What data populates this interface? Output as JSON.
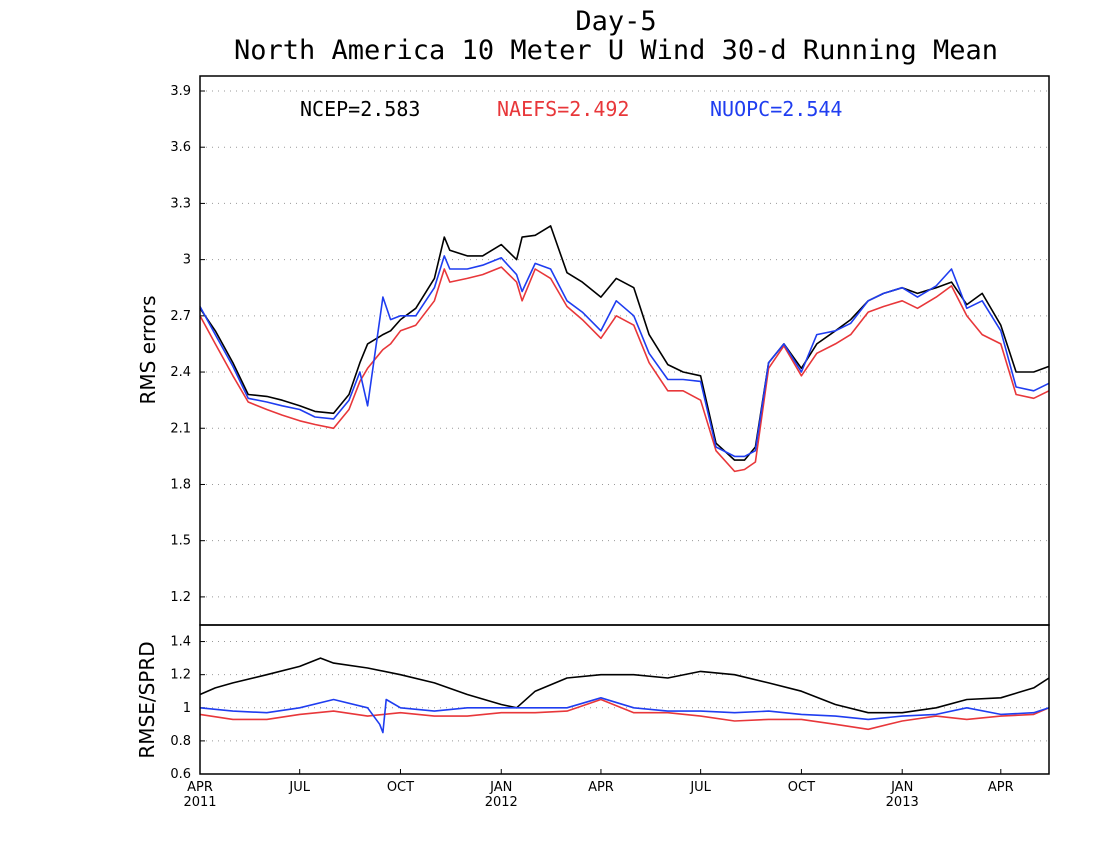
{
  "chart_data": [
    {
      "type": "line",
      "title": "Day-5",
      "subtitle": "North America 10 Meter U Wind 30-d Running Mean",
      "ylabel": "RMS errors",
      "ylim": [
        1.05,
        3.98
      ],
      "yticks": [
        1.2,
        1.5,
        1.8,
        2.1,
        2.4,
        2.7,
        3.0,
        3.3,
        3.6,
        3.9
      ],
      "ytick_labels": [
        "1.2",
        "1.5",
        "1.8",
        "2.1",
        "2.4",
        "2.7",
        "3",
        "3.3",
        "3.6",
        "3.9"
      ],
      "grid": true,
      "legend_position": "top",
      "xlim": [
        "2011-04-01",
        "2013-05-15"
      ],
      "series": [
        {
          "name": "NCEP",
          "label": "NCEP=2.583",
          "color": "#000000",
          "x": [
            "2011-04-01",
            "2011-04-15",
            "2011-05-01",
            "2011-05-15",
            "2011-06-01",
            "2011-06-15",
            "2011-07-01",
            "2011-07-15",
            "2011-08-01",
            "2011-08-15",
            "2011-08-25",
            "2011-09-01",
            "2011-09-15",
            "2011-09-22",
            "2011-10-01",
            "2011-10-15",
            "2011-11-01",
            "2011-11-10",
            "2011-11-15",
            "2011-12-01",
            "2011-12-15",
            "2012-01-01",
            "2012-01-15",
            "2012-01-20",
            "2012-02-01",
            "2012-02-15",
            "2012-03-01",
            "2012-03-15",
            "2012-04-01",
            "2012-04-15",
            "2012-05-01",
            "2012-05-15",
            "2012-06-01",
            "2012-06-15",
            "2012-07-01",
            "2012-07-15",
            "2012-08-01",
            "2012-08-10",
            "2012-08-20",
            "2012-09-01",
            "2012-09-15",
            "2012-10-01",
            "2012-10-15",
            "2012-11-01",
            "2012-11-15",
            "2012-12-01",
            "2012-12-15",
            "2013-01-01",
            "2013-01-15",
            "2013-02-01",
            "2013-02-15",
            "2013-03-01",
            "2013-03-15",
            "2013-04-01",
            "2013-04-15",
            "2013-05-01",
            "2013-05-15"
          ],
          "values": [
            2.74,
            2.62,
            2.45,
            2.28,
            2.27,
            2.25,
            2.22,
            2.19,
            2.18,
            2.28,
            2.45,
            2.55,
            2.6,
            2.62,
            2.68,
            2.74,
            2.9,
            3.12,
            3.05,
            3.02,
            3.02,
            3.08,
            3.0,
            3.12,
            3.13,
            3.18,
            2.93,
            2.88,
            2.8,
            2.9,
            2.85,
            2.6,
            2.44,
            2.4,
            2.38,
            2.02,
            1.93,
            1.93,
            2.0,
            2.45,
            2.55,
            2.42,
            2.55,
            2.62,
            2.68,
            2.78,
            2.82,
            2.85,
            2.82,
            2.85,
            2.88,
            2.76,
            2.82,
            2.65,
            2.4,
            2.4,
            2.43
          ]
        },
        {
          "name": "NAEFS",
          "label": "NAEFS=2.492",
          "color": "#e8373a",
          "x": [
            "2011-04-01",
            "2011-04-15",
            "2011-05-01",
            "2011-05-15",
            "2011-06-01",
            "2011-06-15",
            "2011-07-01",
            "2011-07-15",
            "2011-08-01",
            "2011-08-15",
            "2011-08-25",
            "2011-09-01",
            "2011-09-15",
            "2011-09-22",
            "2011-10-01",
            "2011-10-15",
            "2011-11-01",
            "2011-11-10",
            "2011-11-15",
            "2011-12-01",
            "2011-12-15",
            "2012-01-01",
            "2012-01-15",
            "2012-01-20",
            "2012-02-01",
            "2012-02-15",
            "2012-03-01",
            "2012-03-15",
            "2012-04-01",
            "2012-04-15",
            "2012-05-01",
            "2012-05-15",
            "2012-06-01",
            "2012-06-15",
            "2012-07-01",
            "2012-07-15",
            "2012-08-01",
            "2012-08-10",
            "2012-08-20",
            "2012-09-01",
            "2012-09-15",
            "2012-10-01",
            "2012-10-15",
            "2012-11-01",
            "2012-11-15",
            "2012-12-01",
            "2012-12-15",
            "2013-01-01",
            "2013-01-15",
            "2013-02-01",
            "2013-02-15",
            "2013-03-01",
            "2013-03-15",
            "2013-04-01",
            "2013-04-15",
            "2013-05-01",
            "2013-05-15"
          ],
          "values": [
            2.7,
            2.55,
            2.38,
            2.24,
            2.2,
            2.17,
            2.14,
            2.12,
            2.1,
            2.2,
            2.35,
            2.42,
            2.52,
            2.55,
            2.62,
            2.65,
            2.78,
            2.95,
            2.88,
            2.9,
            2.92,
            2.96,
            2.88,
            2.78,
            2.95,
            2.9,
            2.75,
            2.68,
            2.58,
            2.7,
            2.65,
            2.45,
            2.3,
            2.3,
            2.25,
            1.98,
            1.87,
            1.88,
            1.92,
            2.42,
            2.54,
            2.38,
            2.5,
            2.55,
            2.6,
            2.72,
            2.75,
            2.78,
            2.74,
            2.8,
            2.86,
            2.7,
            2.6,
            2.55,
            2.28,
            2.26,
            2.3
          ]
        },
        {
          "name": "NUOPC",
          "label": "NUOPC=2.544",
          "color": "#1f3df0",
          "x": [
            "2011-04-01",
            "2011-04-15",
            "2011-05-01",
            "2011-05-15",
            "2011-06-01",
            "2011-06-15",
            "2011-07-01",
            "2011-07-15",
            "2011-08-01",
            "2011-08-15",
            "2011-08-25",
            "2011-09-01",
            "2011-09-15",
            "2011-09-22",
            "2011-10-01",
            "2011-10-15",
            "2011-11-01",
            "2011-11-10",
            "2011-11-15",
            "2011-12-01",
            "2011-12-15",
            "2012-01-01",
            "2012-01-15",
            "2012-01-20",
            "2012-02-01",
            "2012-02-15",
            "2012-03-01",
            "2012-03-15",
            "2012-04-01",
            "2012-04-15",
            "2012-05-01",
            "2012-05-15",
            "2012-06-01",
            "2012-06-15",
            "2012-07-01",
            "2012-07-15",
            "2012-08-01",
            "2012-08-10",
            "2012-08-20",
            "2012-09-01",
            "2012-09-15",
            "2012-10-01",
            "2012-10-15",
            "2012-11-01",
            "2012-11-15",
            "2012-12-01",
            "2012-12-15",
            "2013-01-01",
            "2013-01-15",
            "2013-02-01",
            "2013-02-15",
            "2013-03-01",
            "2013-03-15",
            "2013-04-01",
            "2013-04-15",
            "2013-05-01",
            "2013-05-15"
          ],
          "values": [
            2.75,
            2.6,
            2.43,
            2.26,
            2.24,
            2.22,
            2.2,
            2.16,
            2.15,
            2.25,
            2.4,
            2.22,
            2.8,
            2.68,
            2.7,
            2.7,
            2.85,
            3.02,
            2.95,
            2.95,
            2.97,
            3.01,
            2.92,
            2.83,
            2.98,
            2.95,
            2.78,
            2.72,
            2.62,
            2.78,
            2.7,
            2.5,
            2.36,
            2.36,
            2.35,
            2.0,
            1.95,
            1.95,
            1.98,
            2.45,
            2.55,
            2.4,
            2.6,
            2.62,
            2.66,
            2.78,
            2.82,
            2.85,
            2.8,
            2.86,
            2.95,
            2.74,
            2.78,
            2.62,
            2.32,
            2.3,
            2.34
          ]
        }
      ]
    },
    {
      "type": "line",
      "ylabel": "RMSE/SPRD",
      "ylim": [
        0.6,
        1.5
      ],
      "yticks": [
        0.6,
        0.8,
        1.0,
        1.2,
        1.4
      ],
      "ytick_labels": [
        "0.6",
        "0.8",
        "1",
        "1.2",
        "1.4"
      ],
      "grid": true,
      "xlim": [
        "2011-04-01",
        "2013-05-15"
      ],
      "xticks": [
        "2011-04-01",
        "2011-07-01",
        "2011-10-01",
        "2012-01-01",
        "2012-04-01",
        "2012-07-01",
        "2012-10-01",
        "2013-01-01",
        "2013-04-01"
      ],
      "xtick_labels": [
        {
          "month": "APR",
          "year": "2011"
        },
        {
          "month": "JUL",
          "year": ""
        },
        {
          "month": "OCT",
          "year": ""
        },
        {
          "month": "JAN",
          "year": "2012"
        },
        {
          "month": "APR",
          "year": ""
        },
        {
          "month": "JUL",
          "year": ""
        },
        {
          "month": "OCT",
          "year": ""
        },
        {
          "month": "JAN",
          "year": "2013"
        },
        {
          "month": "APR",
          "year": ""
        }
      ],
      "series": [
        {
          "name": "NCEP",
          "color": "#000000",
          "x": [
            "2011-04-01",
            "2011-04-15",
            "2011-05-01",
            "2011-06-01",
            "2011-07-01",
            "2011-07-20",
            "2011-08-01",
            "2011-09-01",
            "2011-10-01",
            "2011-11-01",
            "2011-12-01",
            "2012-01-01",
            "2012-01-15",
            "2012-02-01",
            "2012-03-01",
            "2012-04-01",
            "2012-05-01",
            "2012-06-01",
            "2012-07-01",
            "2012-08-01",
            "2012-09-01",
            "2012-10-01",
            "2012-11-01",
            "2012-12-01",
            "2013-01-01",
            "2013-02-01",
            "2013-03-01",
            "2013-04-01",
            "2013-05-01",
            "2013-05-15"
          ],
          "values": [
            1.08,
            1.12,
            1.15,
            1.2,
            1.25,
            1.3,
            1.27,
            1.24,
            1.2,
            1.15,
            1.08,
            1.02,
            1.0,
            1.1,
            1.18,
            1.2,
            1.2,
            1.18,
            1.22,
            1.2,
            1.15,
            1.1,
            1.02,
            0.97,
            0.97,
            1.0,
            1.05,
            1.06,
            1.12,
            1.18
          ]
        },
        {
          "name": "NAEFS",
          "color": "#e8373a",
          "x": [
            "2011-04-01",
            "2011-05-01",
            "2011-06-01",
            "2011-07-01",
            "2011-08-01",
            "2011-09-01",
            "2011-10-01",
            "2011-11-01",
            "2011-12-01",
            "2012-01-01",
            "2012-02-01",
            "2012-03-01",
            "2012-04-01",
            "2012-05-01",
            "2012-06-01",
            "2012-07-01",
            "2012-08-01",
            "2012-09-01",
            "2012-10-01",
            "2012-11-01",
            "2012-12-01",
            "2013-01-01",
            "2013-02-01",
            "2013-03-01",
            "2013-04-01",
            "2013-05-01",
            "2013-05-15"
          ],
          "values": [
            0.96,
            0.93,
            0.93,
            0.96,
            0.98,
            0.95,
            0.97,
            0.95,
            0.95,
            0.97,
            0.97,
            0.98,
            1.05,
            0.97,
            0.97,
            0.95,
            0.92,
            0.93,
            0.93,
            0.9,
            0.87,
            0.92,
            0.95,
            0.93,
            0.95,
            0.96,
            1.0
          ]
        },
        {
          "name": "NUOPC",
          "color": "#1f3df0",
          "x": [
            "2011-04-01",
            "2011-05-01",
            "2011-06-01",
            "2011-07-01",
            "2011-08-01",
            "2011-09-01",
            "2011-09-12",
            "2011-09-15",
            "2011-09-18",
            "2011-10-01",
            "2011-11-01",
            "2011-12-01",
            "2012-01-01",
            "2012-02-01",
            "2012-03-01",
            "2012-04-01",
            "2012-05-01",
            "2012-06-01",
            "2012-07-01",
            "2012-08-01",
            "2012-09-01",
            "2012-10-01",
            "2012-11-01",
            "2012-12-01",
            "2013-01-01",
            "2013-02-01",
            "2013-03-01",
            "2013-04-01",
            "2013-05-01",
            "2013-05-15"
          ],
          "values": [
            1.0,
            0.98,
            0.97,
            1.0,
            1.05,
            1.0,
            0.9,
            0.85,
            1.05,
            1.0,
            0.98,
            1.0,
            1.0,
            1.0,
            1.0,
            1.06,
            1.0,
            0.98,
            0.98,
            0.97,
            0.98,
            0.96,
            0.95,
            0.93,
            0.95,
            0.96,
            1.0,
            0.96,
            0.97,
            1.0
          ]
        }
      ]
    }
  ]
}
